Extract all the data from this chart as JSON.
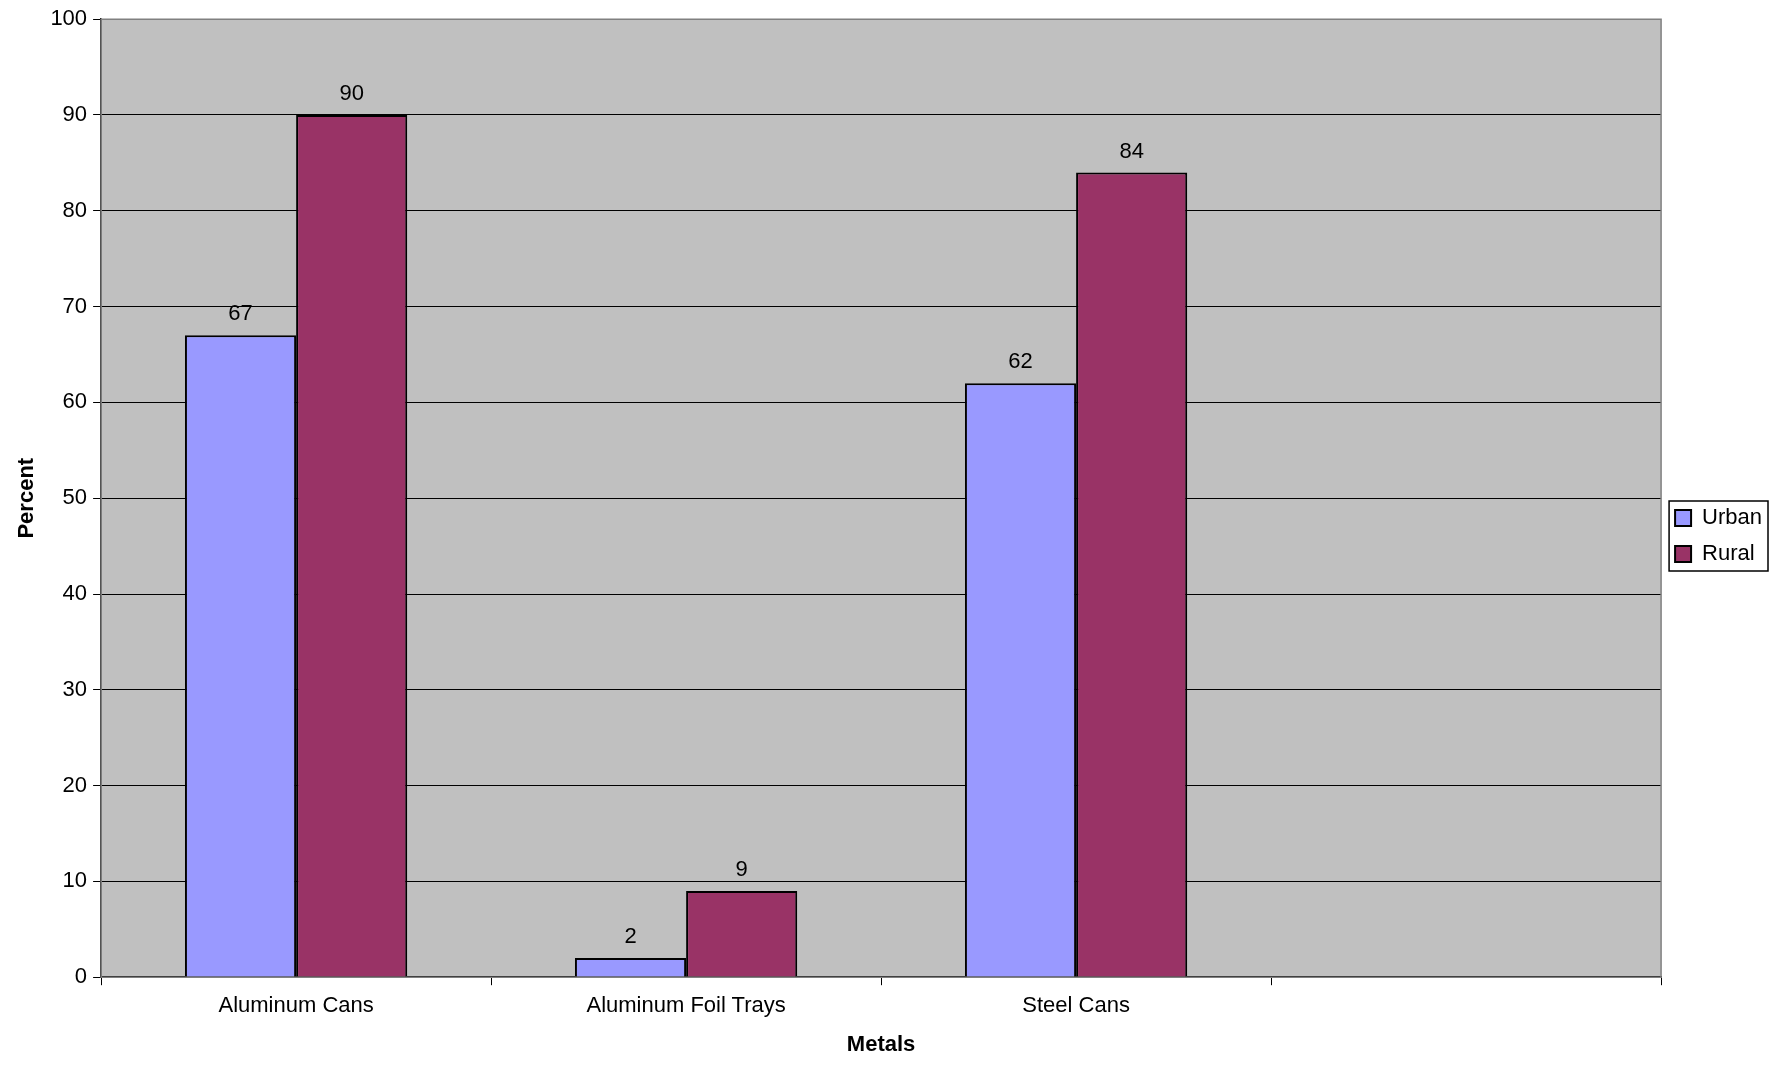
{
  "chart_data": {
    "type": "bar",
    "xlabel": "Metals",
    "ylabel": "Percent",
    "categories": [
      "Aluminum Cans",
      "Aluminum Foil Trays",
      "Steel Cans",
      null
    ],
    "series": [
      {
        "name": "Urban",
        "color": "#9999ff",
        "values": [
          67,
          2,
          62,
          null
        ]
      },
      {
        "name": "Rural",
        "color": "#993366",
        "values": [
          90,
          9,
          84,
          null
        ]
      }
    ],
    "ylim": [
      0,
      100
    ],
    "yticks": [
      0,
      10,
      20,
      30,
      40,
      50,
      60,
      70,
      80,
      90,
      100
    ],
    "grid": "y",
    "legend": "right",
    "data_labels": true
  }
}
